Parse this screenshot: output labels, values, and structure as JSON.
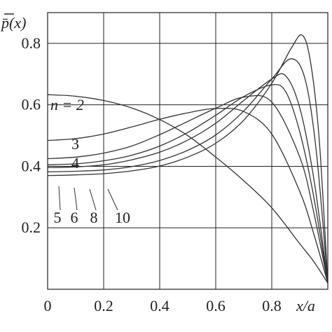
{
  "chart_data": {
    "type": "line",
    "title": "",
    "ylabel": "p̄(x)",
    "xlabel": "x/a",
    "xlim": [
      0,
      1
    ],
    "ylim": [
      0,
      0.9
    ],
    "x_ticks": [
      0,
      0.2,
      0.4,
      0.6,
      0.8
    ],
    "x_tick_labels": [
      "0",
      "0.2",
      "0.4",
      "0.6",
      "0.8"
    ],
    "y_ticks": [
      0.2,
      0.4,
      0.6,
      0.8
    ],
    "y_tick_labels": [
      "0.2",
      "0.4",
      "0.6",
      "0.8"
    ],
    "grid": true,
    "x_grid": [
      0.2,
      0.4,
      0.6,
      0.8
    ],
    "y_grid": [
      0.2,
      0.4,
      0.6,
      0.8
    ],
    "series": [
      {
        "name": "n = 2",
        "points": [
          [
            0,
            0.633
          ],
          [
            0.1,
            0.628
          ],
          [
            0.2,
            0.614
          ],
          [
            0.3,
            0.59
          ],
          [
            0.4,
            0.552
          ],
          [
            0.5,
            0.5
          ],
          [
            0.6,
            0.43
          ],
          [
            0.7,
            0.353
          ],
          [
            0.8,
            0.265
          ],
          [
            0.9,
            0.148
          ],
          [
            0.95,
            0.09
          ],
          [
            1.0,
            0.02
          ]
        ]
      },
      {
        "name": "3",
        "points": [
          [
            0,
            0.484
          ],
          [
            0.1,
            0.49
          ],
          [
            0.2,
            0.505
          ],
          [
            0.3,
            0.528
          ],
          [
            0.4,
            0.553
          ],
          [
            0.5,
            0.574
          ],
          [
            0.6,
            0.588
          ],
          [
            0.7,
            0.578
          ],
          [
            0.8,
            0.505
          ],
          [
            0.9,
            0.318
          ],
          [
            0.95,
            0.18
          ],
          [
            1.0,
            0.02
          ]
        ]
      },
      {
        "name": "4",
        "points": [
          [
            0,
            0.425
          ],
          [
            0.1,
            0.43
          ],
          [
            0.2,
            0.443
          ],
          [
            0.3,
            0.466
          ],
          [
            0.4,
            0.503
          ],
          [
            0.5,
            0.546
          ],
          [
            0.6,
            0.589
          ],
          [
            0.7,
            0.625
          ],
          [
            0.8,
            0.609
          ],
          [
            0.9,
            0.43
          ],
          [
            0.95,
            0.25
          ],
          [
            1.0,
            0.02
          ]
        ]
      },
      {
        "name": "5",
        "points": [
          [
            0,
            0.405
          ],
          [
            0.1,
            0.408
          ],
          [
            0.2,
            0.418
          ],
          [
            0.3,
            0.436
          ],
          [
            0.4,
            0.466
          ],
          [
            0.5,
            0.51
          ],
          [
            0.6,
            0.566
          ],
          [
            0.7,
            0.627
          ],
          [
            0.8,
            0.665
          ],
          [
            0.85,
            0.642
          ],
          [
            0.9,
            0.512
          ],
          [
            0.95,
            0.3
          ],
          [
            1.0,
            0.02
          ]
        ]
      },
      {
        "name": "6",
        "points": [
          [
            0,
            0.396
          ],
          [
            0.1,
            0.398
          ],
          [
            0.2,
            0.405
          ],
          [
            0.3,
            0.421
          ],
          [
            0.4,
            0.446
          ],
          [
            0.5,
            0.485
          ],
          [
            0.6,
            0.54
          ],
          [
            0.7,
            0.614
          ],
          [
            0.8,
            0.684
          ],
          [
            0.85,
            0.694
          ],
          [
            0.9,
            0.59
          ],
          [
            0.95,
            0.36
          ],
          [
            1.0,
            0.02
          ]
        ]
      },
      {
        "name": "8",
        "points": [
          [
            0,
            0.382
          ],
          [
            0.1,
            0.384
          ],
          [
            0.2,
            0.388
          ],
          [
            0.3,
            0.399
          ],
          [
            0.4,
            0.419
          ],
          [
            0.5,
            0.452
          ],
          [
            0.6,
            0.502
          ],
          [
            0.7,
            0.58
          ],
          [
            0.8,
            0.684
          ],
          [
            0.87,
            0.75
          ],
          [
            0.92,
            0.68
          ],
          [
            0.96,
            0.44
          ],
          [
            1.0,
            0.02
          ]
        ]
      },
      {
        "name": "10",
        "points": [
          [
            0,
            0.37
          ],
          [
            0.1,
            0.372
          ],
          [
            0.2,
            0.376
          ],
          [
            0.3,
            0.385
          ],
          [
            0.4,
            0.401
          ],
          [
            0.5,
            0.43
          ],
          [
            0.6,
            0.475
          ],
          [
            0.7,
            0.55
          ],
          [
            0.8,
            0.67
          ],
          [
            0.87,
            0.785
          ],
          [
            0.91,
            0.826
          ],
          [
            0.94,
            0.73
          ],
          [
            0.97,
            0.48
          ],
          [
            1.0,
            0.02
          ]
        ]
      }
    ],
    "curve_labels": [
      {
        "text": "n = 2",
        "series": "n = 2"
      },
      {
        "text": "3",
        "series": "3"
      },
      {
        "text": "4",
        "series": "4"
      },
      {
        "text": "5",
        "series": "5"
      },
      {
        "text": "6",
        "series": "6"
      },
      {
        "text": "8",
        "series": "8"
      },
      {
        "text": "10",
        "series": "10"
      }
    ]
  }
}
